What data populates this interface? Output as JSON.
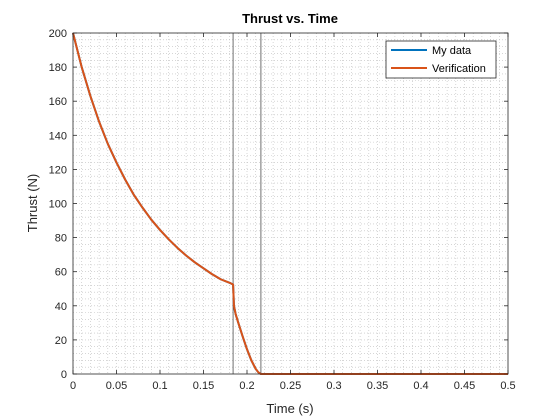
{
  "chart_data": {
    "type": "line",
    "title": "Thrust vs. Time",
    "xlabel": "Time (s)",
    "ylabel": "Thrust (N)",
    "xlim": [
      0,
      0.5
    ],
    "ylim": [
      0,
      200
    ],
    "xticks": [
      0,
      0.05,
      0.1,
      0.15,
      0.2,
      0.25,
      0.3,
      0.35,
      0.4,
      0.45,
      0.5
    ],
    "xtick_labels": [
      "0",
      "0.05",
      "0.1",
      "0.15",
      "0.2",
      "0.25",
      "0.3",
      "0.35",
      "0.4",
      "0.45",
      "0.5"
    ],
    "yticks": [
      0,
      20,
      40,
      60,
      80,
      100,
      120,
      140,
      160,
      180,
      200
    ],
    "ytick_labels": [
      "0",
      "20",
      "40",
      "60",
      "80",
      "100",
      "120",
      "140",
      "160",
      "180",
      "200"
    ],
    "grid": "minor-dotted",
    "legend_position": "top-right",
    "vertical_lines": [
      0.184,
      0.216
    ],
    "series": [
      {
        "name": "My data",
        "color": "#0072BD",
        "x": [
          0,
          0.01,
          0.02,
          0.03,
          0.04,
          0.05,
          0.06,
          0.07,
          0.08,
          0.09,
          0.1,
          0.11,
          0.12,
          0.13,
          0.14,
          0.15,
          0.16,
          0.17,
          0.18,
          0.184,
          0.185,
          0.187,
          0.19,
          0.195,
          0.2,
          0.205,
          0.21,
          0.213,
          0.216,
          0.25,
          0.3,
          0.35,
          0.4,
          0.45,
          0.5
        ],
        "y": [
          200,
          180,
          163,
          148,
          135,
          124,
          114,
          105,
          97.5,
          90.5,
          84.5,
          79,
          74,
          69.5,
          65.5,
          62,
          58.5,
          55.5,
          53.5,
          52.5,
          40,
          35,
          30,
          22,
          14.5,
          8,
          3,
          1,
          0,
          0,
          0,
          0,
          0,
          0,
          0
        ]
      },
      {
        "name": "Verification",
        "color": "#D95319",
        "x": [
          0,
          0.01,
          0.02,
          0.03,
          0.04,
          0.05,
          0.06,
          0.07,
          0.08,
          0.09,
          0.1,
          0.11,
          0.12,
          0.13,
          0.14,
          0.15,
          0.16,
          0.17,
          0.18,
          0.184,
          0.185,
          0.187,
          0.19,
          0.195,
          0.2,
          0.205,
          0.21,
          0.213,
          0.216,
          0.25,
          0.3,
          0.35,
          0.4,
          0.45,
          0.5
        ],
        "y": [
          200,
          180,
          163,
          148,
          135,
          124,
          114,
          105,
          97.5,
          90.5,
          84.5,
          79,
          74,
          69.5,
          65.5,
          62,
          58.5,
          55.5,
          53.5,
          52.5,
          40,
          35,
          30,
          22,
          14.5,
          8,
          3,
          1,
          0,
          0,
          0,
          0,
          0,
          0,
          0
        ]
      }
    ]
  }
}
